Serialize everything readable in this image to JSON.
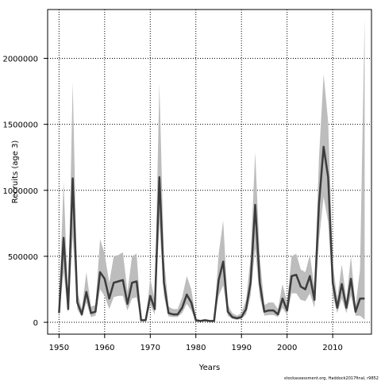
{
  "chart_data": {
    "type": "line",
    "title": "",
    "xlabel": "Years",
    "ylabel": "Recruits (age 3)",
    "credit": "stockassessment.org, Haddock2017final, r9852",
    "xlim": [
      1947.5,
      2018.5
    ],
    "ylim": [
      -90000,
      2370000
    ],
    "x_ticks": [
      1950,
      1960,
      1970,
      1980,
      1990,
      2000,
      2010
    ],
    "y_ticks": [
      0,
      500000,
      1000000,
      1500000,
      2000000
    ],
    "grid": true,
    "grid_style": "dotted",
    "colors": {
      "band": "#bdbdbd",
      "line": "#3c3c3c",
      "grid": "#000000",
      "frame": "#000000"
    },
    "series": [
      {
        "x": [
          1950,
          1951,
          1952,
          1953,
          1954,
          1955,
          1956,
          1957,
          1958,
          1959,
          1960,
          1961,
          1962,
          1963,
          1964,
          1965,
          1966,
          1967,
          1968,
          1969,
          1970,
          1971,
          1972,
          1973,
          1974,
          1975,
          1976,
          1977,
          1978,
          1979,
          1980,
          1981,
          1982,
          1983,
          1984,
          1985,
          1986,
          1987,
          1988,
          1989,
          1990,
          1991,
          1992,
          1993,
          1994,
          1995,
          1996,
          1997,
          1998,
          1999,
          2000,
          2001,
          2002,
          2003,
          2004,
          2005,
          2006,
          2007,
          2008,
          2009,
          2010,
          2011,
          2012,
          2013,
          2014,
          2015,
          2016,
          2017
        ],
        "values": [
          70000,
          640000,
          100000,
          1090000,
          150000,
          60000,
          230000,
          70000,
          80000,
          380000,
          330000,
          180000,
          300000,
          310000,
          320000,
          140000,
          300000,
          310000,
          15000,
          15000,
          200000,
          100000,
          1100000,
          300000,
          70000,
          60000,
          60000,
          110000,
          210000,
          150000,
          15000,
          10000,
          15000,
          10000,
          10000,
          320000,
          460000,
          80000,
          40000,
          30000,
          40000,
          100000,
          300000,
          890000,
          300000,
          80000,
          90000,
          90000,
          60000,
          180000,
          90000,
          350000,
          360000,
          270000,
          250000,
          350000,
          170000,
          900000,
          1330000,
          1100000,
          300000,
          110000,
          290000,
          110000,
          330000,
          80000,
          180000,
          180000
        ],
        "lower": [
          50000,
          380000,
          70000,
          650000,
          100000,
          40000,
          150000,
          40000,
          50000,
          250000,
          200000,
          100000,
          190000,
          200000,
          200000,
          90000,
          180000,
          190000,
          10000,
          10000,
          130000,
          60000,
          750000,
          200000,
          45000,
          40000,
          40000,
          70000,
          140000,
          90000,
          8000,
          6000,
          9000,
          6000,
          6000,
          200000,
          280000,
          50000,
          25000,
          20000,
          25000,
          60000,
          200000,
          560000,
          190000,
          50000,
          55000,
          55000,
          40000,
          110000,
          55000,
          220000,
          220000,
          170000,
          160000,
          220000,
          110000,
          620000,
          950000,
          760000,
          200000,
          70000,
          180000,
          70000,
          200000,
          50000,
          50000,
          20000
        ],
        "upper": [
          100000,
          1070000,
          140000,
          1820000,
          230000,
          100000,
          380000,
          120000,
          130000,
          630000,
          520000,
          300000,
          500000,
          510000,
          530000,
          230000,
          500000,
          520000,
          25000,
          25000,
          330000,
          170000,
          1810000,
          490000,
          120000,
          100000,
          100000,
          190000,
          350000,
          250000,
          25000,
          18000,
          25000,
          18000,
          18000,
          520000,
          770000,
          130000,
          70000,
          50000,
          70000,
          170000,
          490000,
          1290000,
          500000,
          130000,
          150000,
          150000,
          100000,
          290000,
          150000,
          500000,
          520000,
          400000,
          380000,
          510000,
          260000,
          1250000,
          1880000,
          1520000,
          450000,
          180000,
          440000,
          170000,
          500000,
          120000,
          400000,
          2310000
        ]
      }
    ]
  }
}
